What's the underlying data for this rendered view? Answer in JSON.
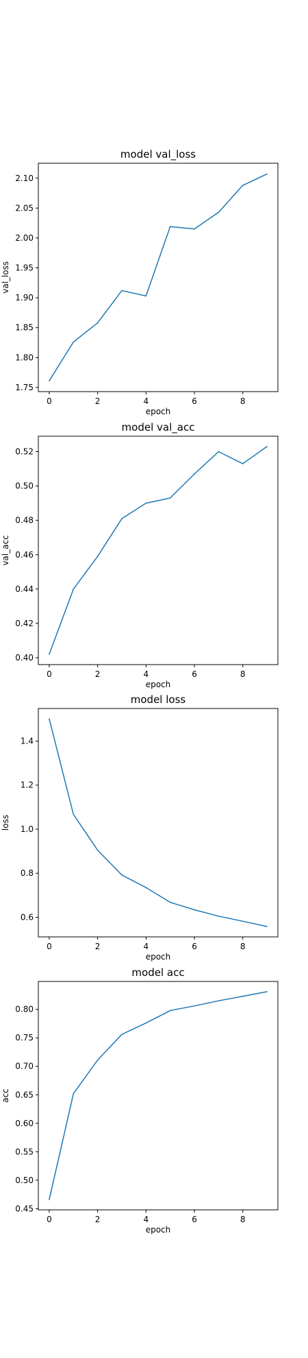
{
  "chart_data": [
    {
      "type": "line",
      "title": "model val_loss",
      "xlabel": "epoch",
      "ylabel": "val_loss",
      "x": [
        0,
        1,
        2,
        3,
        4,
        5,
        6,
        7,
        8,
        9
      ],
      "y": [
        1.761,
        1.826,
        1.858,
        1.912,
        1.903,
        2.019,
        2.015,
        2.043,
        2.088,
        2.107
      ],
      "xlim": [
        -0.45,
        9.45
      ],
      "ylim": [
        1.743,
        2.125
      ],
      "xticks": [
        0,
        2,
        4,
        6,
        8
      ],
      "yticks": [
        1.75,
        1.8,
        1.85,
        1.9,
        1.95,
        2.0,
        2.05,
        2.1
      ],
      "yticklabels": [
        "1.75",
        "1.80",
        "1.85",
        "1.90",
        "1.95",
        "2.00",
        "2.05",
        "2.10"
      ],
      "line_color": "#1f77b4"
    },
    {
      "type": "line",
      "title": "model val_acc",
      "xlabel": "epoch",
      "ylabel": "val_acc",
      "x": [
        0,
        1,
        2,
        3,
        4,
        5,
        6,
        7,
        8,
        9
      ],
      "y": [
        0.402,
        0.44,
        0.459,
        0.481,
        0.49,
        0.493,
        0.507,
        0.52,
        0.513,
        0.523
      ],
      "xlim": [
        -0.45,
        9.45
      ],
      "ylim": [
        0.396,
        0.529
      ],
      "xticks": [
        0,
        2,
        4,
        6,
        8
      ],
      "yticks": [
        0.4,
        0.42,
        0.44,
        0.46,
        0.48,
        0.5,
        0.52
      ],
      "yticklabels": [
        "0.40",
        "0.42",
        "0.44",
        "0.46",
        "0.48",
        "0.50",
        "0.52"
      ],
      "line_color": "#1f77b4"
    },
    {
      "type": "line",
      "title": "model loss",
      "xlabel": "epoch",
      "ylabel": "loss",
      "x": [
        0,
        1,
        2,
        3,
        4,
        5,
        6,
        7,
        8,
        9
      ],
      "y": [
        1.501,
        1.067,
        0.905,
        0.792,
        0.735,
        0.668,
        0.634,
        0.605,
        0.582,
        0.558
      ],
      "xlim": [
        -0.45,
        9.45
      ],
      "ylim": [
        0.511,
        1.548
      ],
      "xticks": [
        0,
        2,
        4,
        6,
        8
      ],
      "yticks": [
        0.6,
        0.8,
        1.0,
        1.2,
        1.4
      ],
      "yticklabels": [
        "0.6",
        "0.8",
        "1.0",
        "1.2",
        "1.4"
      ],
      "line_color": "#1f77b4"
    },
    {
      "type": "line",
      "title": "model acc",
      "xlabel": "epoch",
      "ylabel": "acc",
      "x": [
        0,
        1,
        2,
        3,
        4,
        5,
        6,
        7,
        8,
        9
      ],
      "y": [
        0.466,
        0.652,
        0.711,
        0.756,
        0.776,
        0.798,
        0.806,
        0.815,
        0.823,
        0.831
      ],
      "xlim": [
        -0.45,
        9.45
      ],
      "ylim": [
        0.448,
        0.849
      ],
      "xticks": [
        0,
        2,
        4,
        6,
        8
      ],
      "yticks": [
        0.45,
        0.5,
        0.55,
        0.6,
        0.65,
        0.7,
        0.75,
        0.8
      ],
      "yticklabels": [
        "0.45",
        "0.50",
        "0.55",
        "0.60",
        "0.65",
        "0.70",
        "0.75",
        "0.80"
      ],
      "line_color": "#1f77b4"
    }
  ]
}
